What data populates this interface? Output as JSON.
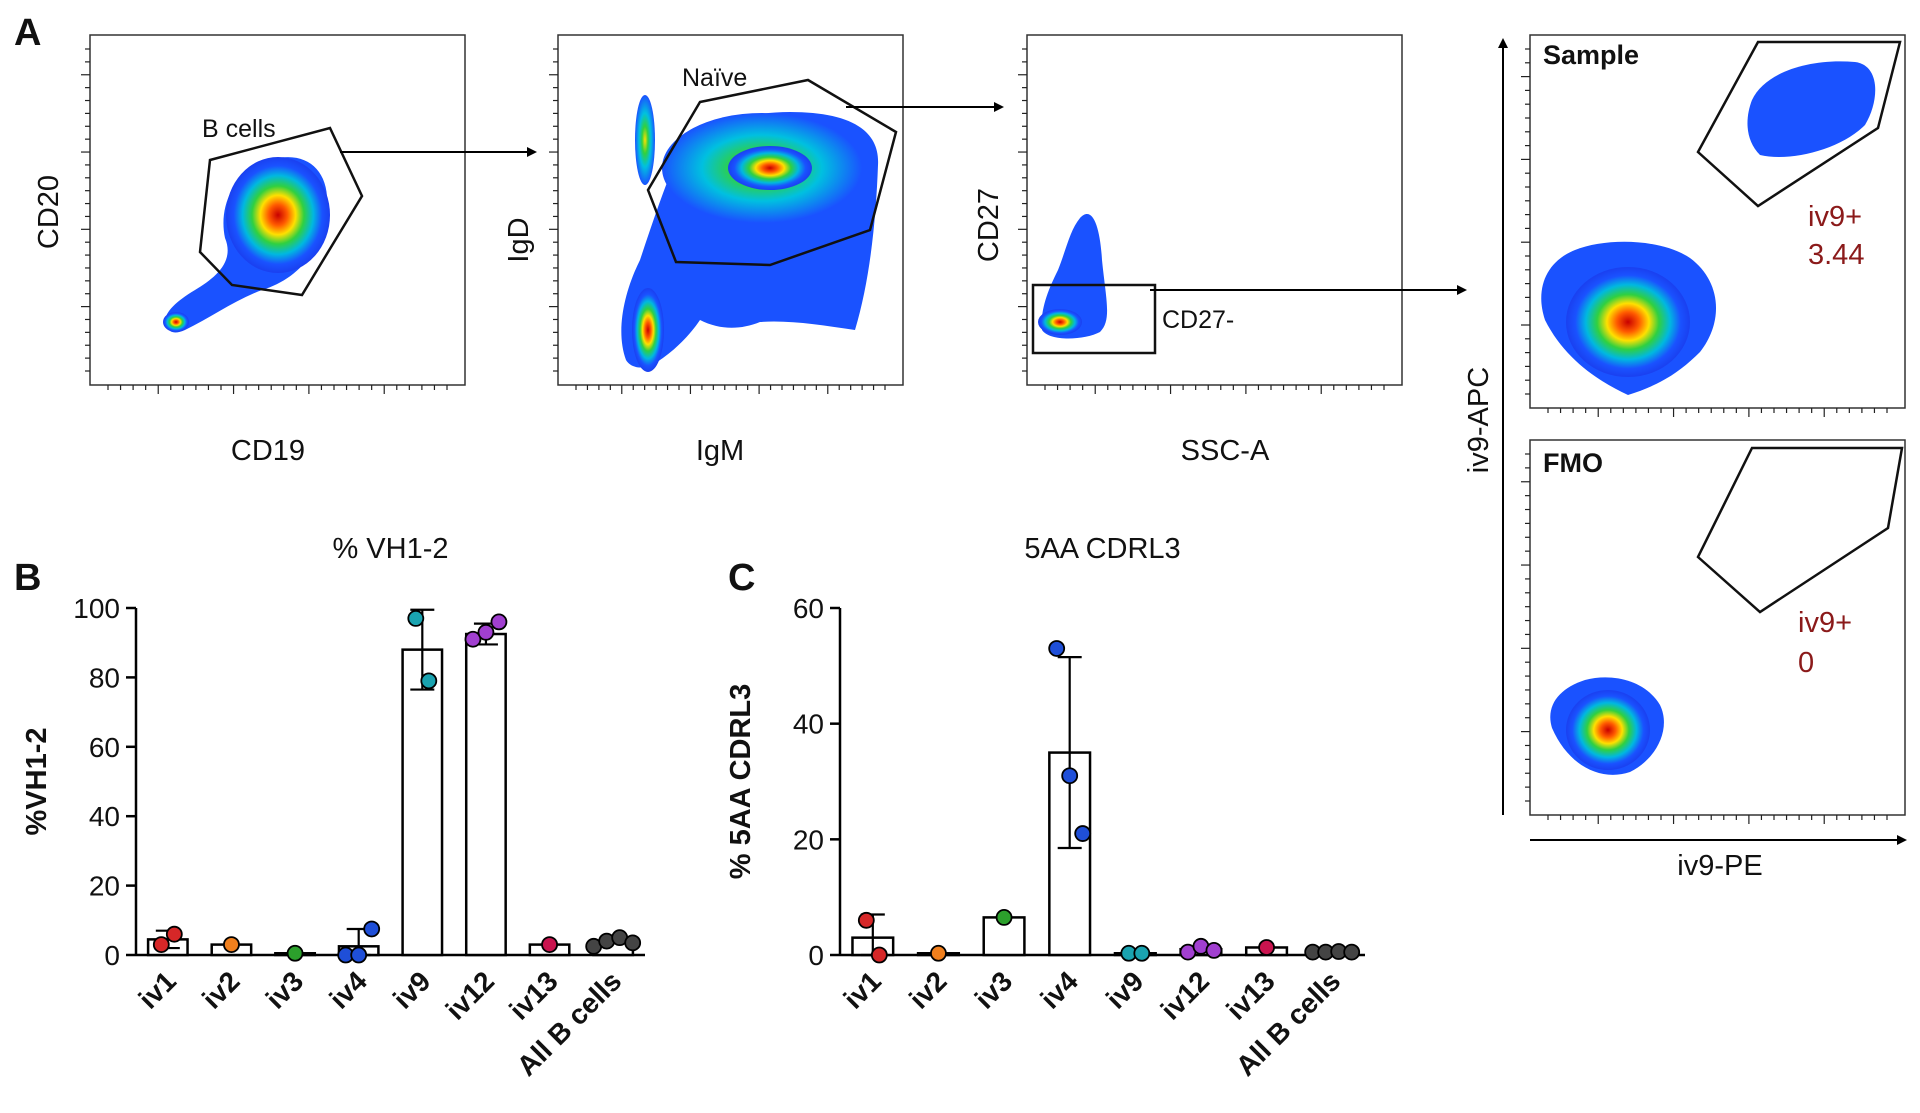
{
  "panels": {
    "a": "A",
    "b": "B",
    "c": "C"
  },
  "flow": {
    "plot1": {
      "xlabel": "CD19",
      "ylabel": "CD20",
      "gate": "B cells"
    },
    "plot2": {
      "xlabel": "IgM",
      "ylabel": "IgD",
      "gate": "Naïve"
    },
    "plot3": {
      "xlabel": "SSC-A",
      "ylabel": "CD27",
      "gate": "CD27-"
    },
    "plot4": {
      "xlabel": "iv9-PE",
      "ylabel": "iv9-APC",
      "sample": {
        "title": "Sample",
        "gate": "iv9+",
        "percent": "3.44"
      },
      "fmo": {
        "title": "FMO",
        "gate": "iv9+",
        "percent": "0"
      }
    }
  },
  "colors": {
    "iv1": "#d62728",
    "iv2": "#f07f1d",
    "iv3": "#2ca02c",
    "iv4": "#1f4fd8",
    "iv9": "#1aa3b0",
    "iv12": "#a13fd0",
    "iv13": "#c9144f",
    "all_b_cells": "#444444"
  },
  "chart_data": [
    {
      "type": "bar",
      "title": "% VH1-2",
      "xlabel": "",
      "ylabel": "%VH1-2",
      "ylim": [
        0,
        100
      ],
      "yticks": [
        "0",
        "20",
        "40",
        "60",
        "80",
        "100"
      ],
      "categories": [
        "iv1",
        "iv2",
        "iv3",
        "iv4",
        "iv9",
        "iv12",
        "iv13",
        "All B cells"
      ],
      "values": [
        4.5,
        3,
        0.5,
        2.5,
        88,
        92.5,
        3,
        3.5
      ],
      "error": [
        2.5,
        0,
        0,
        5,
        11.5,
        3,
        0,
        0
      ],
      "points": [
        [
          3,
          6
        ],
        [
          3
        ],
        [
          0.5
        ],
        [
          0,
          0,
          7.5
        ],
        [
          97,
          79
        ],
        [
          91,
          93,
          96
        ],
        [
          3
        ],
        [
          2.5,
          4,
          5,
          3.5
        ]
      ]
    },
    {
      "type": "bar",
      "title": "5AA CDRL3",
      "xlabel": "",
      "ylabel": "% 5AA CDRL3",
      "ylim": [
        0,
        60
      ],
      "yticks": [
        "0",
        "20",
        "40",
        "60"
      ],
      "categories": [
        "iv1",
        "iv2",
        "iv3",
        "iv4",
        "iv9",
        "iv12",
        "iv13",
        "All B cells"
      ],
      "values": [
        3,
        0.3,
        6.5,
        35,
        0.3,
        1,
        1.3,
        0.5
      ],
      "error": [
        4,
        0,
        0,
        16.5,
        0,
        0,
        0,
        0
      ],
      "points": [
        [
          6,
          0
        ],
        [
          0.3
        ],
        [
          6.5
        ],
        [
          53,
          31,
          21
        ],
        [
          0.3,
          0.3
        ],
        [
          0.5,
          1.5,
          0.8
        ],
        [
          1.3
        ],
        [
          0.5,
          0.5,
          0.6,
          0.5
        ]
      ]
    }
  ]
}
